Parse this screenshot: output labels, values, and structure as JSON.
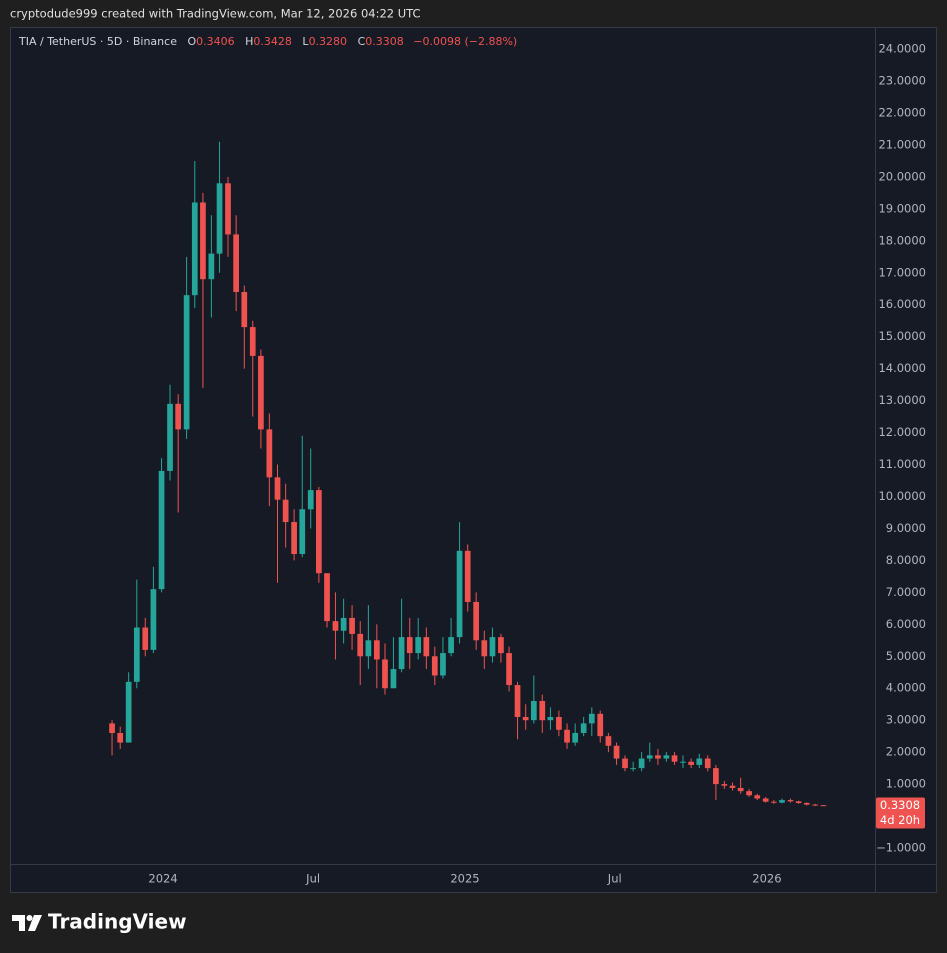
{
  "top_note": "cryptodude999 created with TradingView.com, Mar 12, 2026 04:22 UTC",
  "legend": {
    "symbol": "TIA / TetherUS · 5D · Binance",
    "o_label": "O",
    "o": "0.3406",
    "h_label": "H",
    "h": "0.3428",
    "l_label": "L",
    "l": "0.3280",
    "c_label": "C",
    "c": "0.3308",
    "change": "−0.0098 (−2.88%)"
  },
  "chart_data": {
    "type": "candlestick",
    "x": [
      2023.831,
      2023.858,
      2023.886,
      2023.913,
      2023.941,
      2023.968,
      2023.995,
      2024.023,
      2024.05,
      2024.078,
      2024.105,
      2024.132,
      2024.16,
      2024.187,
      2024.215,
      2024.242,
      2024.269,
      2024.297,
      2024.324,
      2024.352,
      2024.379,
      2024.406,
      2024.434,
      2024.461,
      2024.489,
      2024.516,
      2024.543,
      2024.571,
      2024.598,
      2024.626,
      2024.653,
      2024.68,
      2024.708,
      2024.735,
      2024.763,
      2024.79,
      2024.817,
      2024.845,
      2024.872,
      2024.9,
      2024.927,
      2024.954,
      2024.982,
      2025.009,
      2025.037,
      2025.064,
      2025.091,
      2025.119,
      2025.146,
      2025.174,
      2025.201,
      2025.228,
      2025.256,
      2025.283,
      2025.311,
      2025.338,
      2025.365,
      2025.393,
      2025.42,
      2025.448,
      2025.475,
      2025.502,
      2025.53,
      2025.557,
      2025.585,
      2025.612,
      2025.639,
      2025.667,
      2025.694,
      2025.722,
      2025.749,
      2025.776,
      2025.804,
      2025.831,
      2025.859,
      2025.886,
      2025.913,
      2025.941,
      2025.968,
      2025.996,
      2026.023,
      2026.05,
      2026.078,
      2026.105,
      2026.132,
      2026.16,
      2026.187
    ],
    "open": [
      2.9,
      2.6,
      2.3,
      4.2,
      5.9,
      5.2,
      7.1,
      10.8,
      12.9,
      12.1,
      16.3,
      19.2,
      16.8,
      17.6,
      19.8,
      18.2,
      16.4,
      15.3,
      14.4,
      12.1,
      10.6,
      9.9,
      9.2,
      8.2,
      9.6,
      10.2,
      7.6,
      6.1,
      5.8,
      6.2,
      5.7,
      5.0,
      5.5,
      4.9,
      4.0,
      4.6,
      5.6,
      5.1,
      5.6,
      5.0,
      4.4,
      5.1,
      5.6,
      8.3,
      6.7,
      5.5,
      5.0,
      5.6,
      5.1,
      4.1,
      3.1,
      3.0,
      3.6,
      3.0,
      3.1,
      2.7,
      2.3,
      2.6,
      2.9,
      3.2,
      2.5,
      2.2,
      1.8,
      1.5,
      1.5,
      1.8,
      1.9,
      1.8,
      1.9,
      1.7,
      1.7,
      1.6,
      1.8,
      1.5,
      1.0,
      0.95,
      0.88,
      0.78,
      0.65,
      0.55,
      0.45,
      0.42,
      0.5,
      0.46,
      0.41,
      0.36,
      0.3406
    ],
    "high": [
      3.0,
      2.8,
      4.5,
      7.4,
      6.2,
      7.8,
      11.2,
      13.5,
      13.2,
      17.5,
      20.5,
      19.5,
      18.8,
      21.1,
      20.0,
      18.8,
      16.6,
      15.5,
      14.6,
      12.6,
      11.0,
      10.4,
      9.6,
      11.9,
      11.5,
      10.3,
      7.5,
      7.0,
      6.8,
      6.6,
      6.1,
      6.6,
      6.0,
      5.4,
      5.6,
      6.8,
      6.2,
      6.2,
      5.9,
      5.3,
      5.6,
      6.2,
      9.2,
      8.5,
      7.0,
      5.8,
      5.9,
      5.7,
      5.3,
      4.2,
      3.5,
      4.4,
      3.8,
      3.4,
      3.3,
      2.9,
      2.9,
      3.1,
      3.4,
      3.3,
      2.6,
      2.3,
      1.9,
      1.7,
      2.0,
      2.3,
      2.1,
      2.0,
      2.0,
      1.9,
      1.8,
      1.95,
      1.9,
      1.6,
      1.1,
      1.05,
      1.2,
      0.85,
      0.7,
      0.6,
      0.5,
      0.55,
      0.55,
      0.48,
      0.43,
      0.38,
      0.3428
    ],
    "low": [
      1.9,
      2.1,
      2.3,
      4.0,
      5.0,
      5.1,
      7.0,
      10.5,
      9.5,
      11.8,
      15.9,
      13.4,
      15.6,
      17.0,
      17.5,
      15.8,
      14.0,
      12.5,
      11.5,
      9.7,
      7.3,
      8.4,
      8.0,
      8.1,
      9.0,
      7.3,
      5.9,
      4.9,
      5.4,
      5.2,
      4.1,
      4.6,
      4.0,
      3.8,
      4.0,
      4.5,
      4.6,
      4.9,
      4.6,
      4.1,
      4.3,
      5.0,
      5.4,
      6.4,
      5.2,
      4.6,
      4.8,
      4.8,
      3.9,
      2.4,
      2.7,
      2.9,
      2.6,
      2.7,
      2.5,
      2.1,
      2.2,
      2.5,
      2.5,
      2.3,
      2.0,
      1.6,
      1.4,
      1.4,
      1.4,
      1.7,
      1.6,
      1.7,
      1.6,
      1.5,
      1.5,
      1.5,
      1.4,
      0.5,
      0.85,
      0.8,
      0.7,
      0.6,
      0.5,
      0.42,
      0.38,
      0.4,
      0.42,
      0.38,
      0.33,
      0.32,
      0.328
    ],
    "close": [
      2.6,
      2.3,
      4.2,
      5.9,
      5.2,
      7.1,
      10.8,
      12.9,
      12.1,
      16.3,
      19.2,
      16.8,
      17.6,
      19.8,
      18.2,
      16.4,
      15.3,
      14.4,
      12.1,
      10.6,
      9.9,
      9.2,
      8.2,
      9.6,
      10.2,
      7.6,
      6.1,
      5.8,
      6.2,
      5.7,
      5.0,
      5.5,
      4.9,
      4.0,
      4.6,
      5.6,
      5.1,
      5.6,
      5.0,
      4.4,
      5.1,
      5.6,
      8.3,
      6.7,
      5.5,
      5.0,
      5.6,
      5.1,
      4.1,
      3.1,
      3.0,
      3.6,
      3.0,
      3.1,
      2.7,
      2.3,
      2.6,
      2.9,
      3.2,
      2.5,
      2.2,
      1.8,
      1.5,
      1.5,
      1.8,
      1.9,
      1.8,
      1.9,
      1.7,
      1.7,
      1.6,
      1.8,
      1.5,
      1.0,
      0.95,
      0.88,
      0.78,
      0.65,
      0.55,
      0.45,
      0.42,
      0.5,
      0.46,
      0.41,
      0.36,
      0.34,
      0.3308
    ],
    "up_color": "#26a69a",
    "down_color": "#ef5350",
    "xlim": [
      2023.493,
      2026.358
    ],
    "xticks": [
      2024,
      {
        "value": 2024.497,
        "label": "Jul"
      },
      2025,
      {
        "value": 2025.496,
        "label": "Jul"
      },
      2026
    ],
    "ylim": [
      -1.5,
      24.66
    ],
    "yticks": [
      {
        "value": -1,
        "label": "−1.0000"
      },
      {
        "value": 1,
        "label": "1.0000"
      },
      {
        "value": 2,
        "label": "2.0000"
      },
      {
        "value": 3,
        "label": "3.0000"
      },
      {
        "value": 4,
        "label": "4.0000"
      },
      {
        "value": 5,
        "label": "5.0000"
      },
      {
        "value": 6,
        "label": "6.0000"
      },
      {
        "value": 7,
        "label": "7.0000"
      },
      {
        "value": 8,
        "label": "8.0000"
      },
      {
        "value": 9,
        "label": "9.0000"
      },
      {
        "value": 10,
        "label": "10.0000"
      },
      {
        "value": 11,
        "label": "11.0000"
      },
      {
        "value": 12,
        "label": "12.0000"
      },
      {
        "value": 13,
        "label": "13.0000"
      },
      {
        "value": 14,
        "label": "14.0000"
      },
      {
        "value": 15,
        "label": "15.0000"
      },
      {
        "value": 16,
        "label": "16.0000"
      },
      {
        "value": 17,
        "label": "17.0000"
      },
      {
        "value": 18,
        "label": "18.0000"
      },
      {
        "value": 19,
        "label": "19.0000"
      },
      {
        "value": 20,
        "label": "20.0000"
      },
      {
        "value": 21,
        "label": "21.0000"
      },
      {
        "value": 22,
        "label": "22.0000"
      },
      {
        "value": 23,
        "label": "23.0000"
      },
      {
        "value": 24,
        "label": "24.0000"
      }
    ],
    "grid": false
  },
  "price_label": {
    "countdown": "4d 20h"
  },
  "brand": "TradingView"
}
